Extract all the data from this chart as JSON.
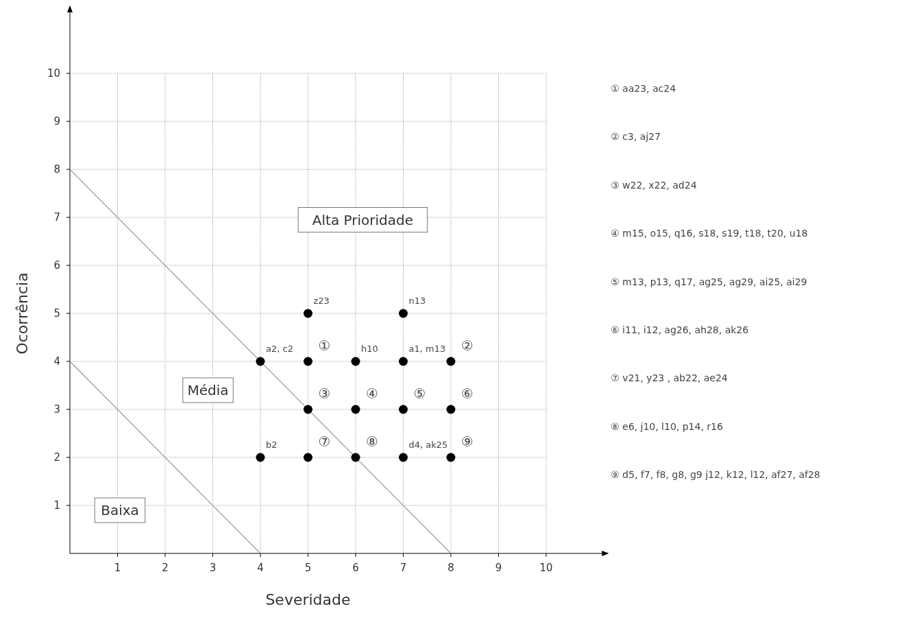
{
  "chart_data": {
    "type": "scatter",
    "xlabel": "Severidade",
    "ylabel": "Ocorrência",
    "xlim": [
      0,
      11.3
    ],
    "ylim": [
      0,
      11.4
    ],
    "xticks": [
      1,
      2,
      3,
      4,
      5,
      6,
      7,
      8,
      9,
      10
    ],
    "yticks": [
      1,
      2,
      3,
      4,
      5,
      6,
      7,
      8,
      9,
      10
    ],
    "grid": true,
    "marker": "circle",
    "series": [
      {
        "color": "#000000",
        "x": [
          5,
          7,
          4,
          5,
          6,
          7,
          8,
          5,
          6,
          7,
          8,
          4,
          5,
          6,
          7,
          8
        ],
        "values": [
          5,
          5,
          4,
          4,
          4,
          4,
          4,
          3,
          3,
          3,
          3,
          2,
          2,
          2,
          2,
          2
        ],
        "value_labels": [
          "z23",
          "n13",
          "a2, c2",
          "①",
          "h10",
          "a1, m13",
          "②",
          "③",
          "④",
          "⑤",
          "⑥",
          "b2",
          "⑦",
          "⑧",
          "d4, ak25",
          "⑨"
        ]
      },
      {
        "type": "line",
        "color": "#9a9a9a",
        "marker": "none",
        "x": [
          0,
          4
        ],
        "values": [
          4,
          0
        ]
      },
      {
        "type": "line",
        "color": "#9a9a9a",
        "marker": "none",
        "x": [
          0,
          8
        ],
        "values": [
          8,
          0
        ]
      }
    ],
    "annotations": [
      "Alta Prioridade",
      "Média",
      "Baixa",
      "① aa23, ac24",
      "② c3, aj27",
      "③ w22, x22, ad24",
      "④ m15, o15, q16, s18, s19, t18, t20, u18",
      "⑤ m13, p13, q17, ag25, ag29, ai25, ai29",
      "⑥ i11, i12, ag26, ah28, ak26",
      "⑦ v21, y23 , ab22, ae24",
      "⑧ e6, j10, l10, p14, r16",
      "⑨ d5, f7, f8, g8, g9 j12, k12, l12, af27, af28"
    ]
  }
}
